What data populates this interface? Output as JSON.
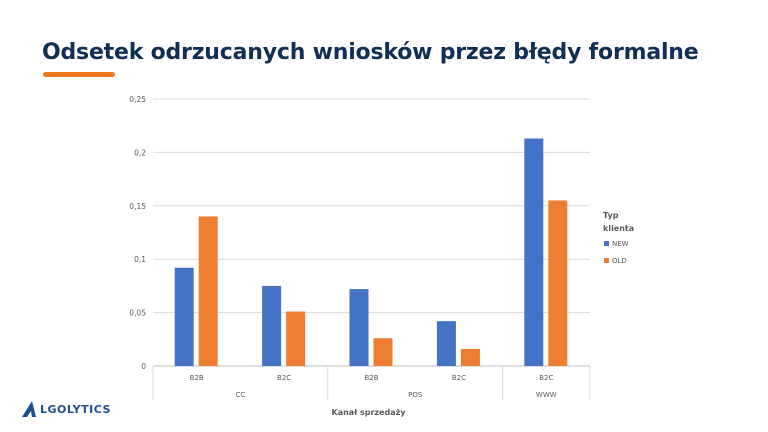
{
  "title": "Odsetek odrzucanych wniosków przez błędy formalne",
  "logo_text": "LGOLYTICS",
  "logo_letter": "A",
  "chart_data": {
    "type": "bar",
    "title": "",
    "xlabel": "Kanał sprzedaży",
    "ylabel": "",
    "ylim": [
      0,
      0.25
    ],
    "yticks": [
      "0",
      "0,05",
      "0,1",
      "0,15",
      "0,2",
      "0,25"
    ],
    "grid": true,
    "categories": [
      {
        "group": "CC",
        "label": "B2B"
      },
      {
        "group": "CC",
        "label": "B2C"
      },
      {
        "group": "POS",
        "label": "B2B"
      },
      {
        "group": "POS",
        "label": "B2C"
      },
      {
        "group": "WWW",
        "label": "B2C"
      }
    ],
    "groups": [
      "CC",
      "POS",
      "WWW"
    ],
    "legend_title": "Typ klienta",
    "legend_title_lines": [
      "Typ",
      "klienta"
    ],
    "legend_placement": "right",
    "series": [
      {
        "name": "NEW",
        "color": "#4472c4",
        "values": [
          0.092,
          0.075,
          0.072,
          0.042,
          0.213
        ]
      },
      {
        "name": "OLD",
        "color": "#ed7d31",
        "values": [
          0.14,
          0.051,
          0.026,
          0.016,
          0.155
        ]
      }
    ]
  }
}
